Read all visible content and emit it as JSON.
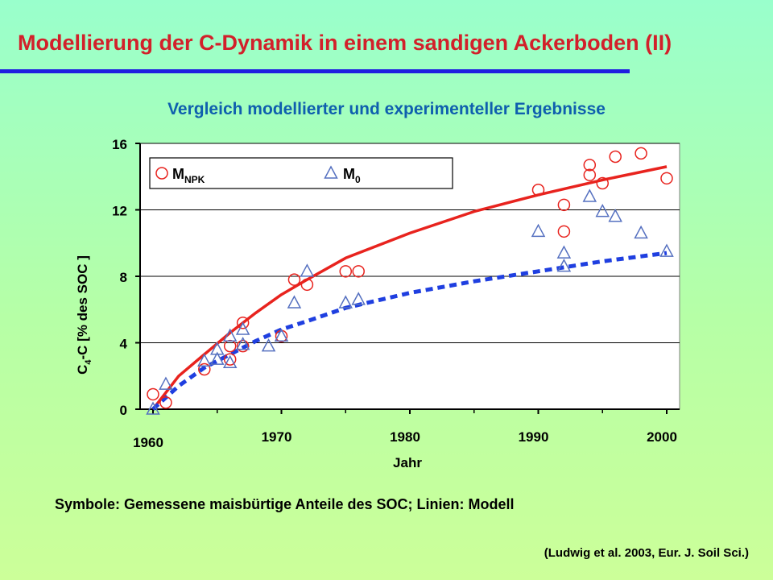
{
  "slide": {
    "title": "Modellierung der C-Dynamik in einem sandigen Ackerboden (II)",
    "subtitle": "Vergleich modellierter und experimenteller Ergebnisse",
    "caption": "Symbole: Gemessene maisbürtige Anteile des SOC; Linien: Modell",
    "citation": "(Ludwig et al. 2003, Eur. J. Soil Sci.)"
  },
  "chart_data": {
    "type": "scatter",
    "title": "",
    "xlabel": "Jahr",
    "ylabel": {
      "prefix": "C",
      "subscript": "4",
      "suffix": "-C  [% des SOC ]"
    },
    "xlim": [
      1960,
      2000
    ],
    "ylim": [
      0,
      16
    ],
    "xticks": [
      1960,
      1970,
      1980,
      1990,
      2000
    ],
    "yticks": [
      0,
      4,
      8,
      12,
      16
    ],
    "grid": "horizontal",
    "legend": {
      "position": "top-left",
      "entries": [
        {
          "label": "M",
          "subscript": "NPK",
          "symbol": "circle"
        },
        {
          "label": "M",
          "subscript": "0",
          "symbol": "triangle"
        }
      ]
    },
    "colors": {
      "npk": "#e8231e",
      "m0": "#1f3fe0",
      "triangle_stroke": "#5570c0"
    },
    "series": [
      {
        "symbol": "circle",
        "points": [
          [
            1960,
            0.9
          ],
          [
            1961,
            0.4
          ],
          [
            1964,
            2.4
          ],
          [
            1966,
            3.0
          ],
          [
            1966,
            3.8
          ],
          [
            1967,
            5.2
          ],
          [
            1967,
            3.8
          ],
          [
            1970,
            4.4
          ],
          [
            1971,
            7.8
          ],
          [
            1972,
            7.5
          ],
          [
            1975,
            8.3
          ],
          [
            1976,
            8.3
          ],
          [
            1990,
            13.2
          ],
          [
            1992,
            12.3
          ],
          [
            1992,
            10.7
          ],
          [
            1994,
            14.7
          ],
          [
            1994,
            14.1
          ],
          [
            1995,
            13.6
          ],
          [
            1996,
            15.2
          ],
          [
            1998,
            15.4
          ],
          [
            2000,
            13.9
          ]
        ]
      },
      {
        "symbol": "triangle",
        "points": [
          [
            1960,
            0.0
          ],
          [
            1961,
            1.5
          ],
          [
            1964,
            2.9
          ],
          [
            1965,
            3.0
          ],
          [
            1965,
            3.6
          ],
          [
            1966,
            2.8
          ],
          [
            1966,
            4.4
          ],
          [
            1967,
            3.9
          ],
          [
            1967,
            4.8
          ],
          [
            1969,
            3.8
          ],
          [
            1970,
            4.4
          ],
          [
            1971,
            6.4
          ],
          [
            1972,
            8.3
          ],
          [
            1975,
            6.4
          ],
          [
            1976,
            6.6
          ],
          [
            1990,
            10.7
          ],
          [
            1992,
            9.4
          ],
          [
            1992,
            8.6
          ],
          [
            1994,
            12.8
          ],
          [
            1995,
            11.9
          ],
          [
            1996,
            11.6
          ],
          [
            1998,
            10.6
          ],
          [
            2000,
            9.5
          ]
        ]
      },
      {
        "style": "solid",
        "points": [
          [
            1960,
            0.0
          ],
          [
            1962,
            2.0
          ],
          [
            1964,
            3.3
          ],
          [
            1966,
            4.6
          ],
          [
            1968,
            5.8
          ],
          [
            1970,
            6.9
          ],
          [
            1972,
            7.8
          ],
          [
            1975,
            9.1
          ],
          [
            1980,
            10.6
          ],
          [
            1985,
            11.9
          ],
          [
            1990,
            12.9
          ],
          [
            1995,
            13.8
          ],
          [
            2000,
            14.6
          ]
        ]
      },
      {
        "style": "dashed",
        "points": [
          [
            1960,
            0.0
          ],
          [
            1962,
            1.4
          ],
          [
            1964,
            2.5
          ],
          [
            1966,
            3.3
          ],
          [
            1968,
            4.1
          ],
          [
            1970,
            4.8
          ],
          [
            1972,
            5.3
          ],
          [
            1975,
            6.1
          ],
          [
            1980,
            7.0
          ],
          [
            1985,
            7.7
          ],
          [
            1990,
            8.3
          ],
          [
            1995,
            8.9
          ],
          [
            2000,
            9.4
          ]
        ]
      }
    ]
  }
}
